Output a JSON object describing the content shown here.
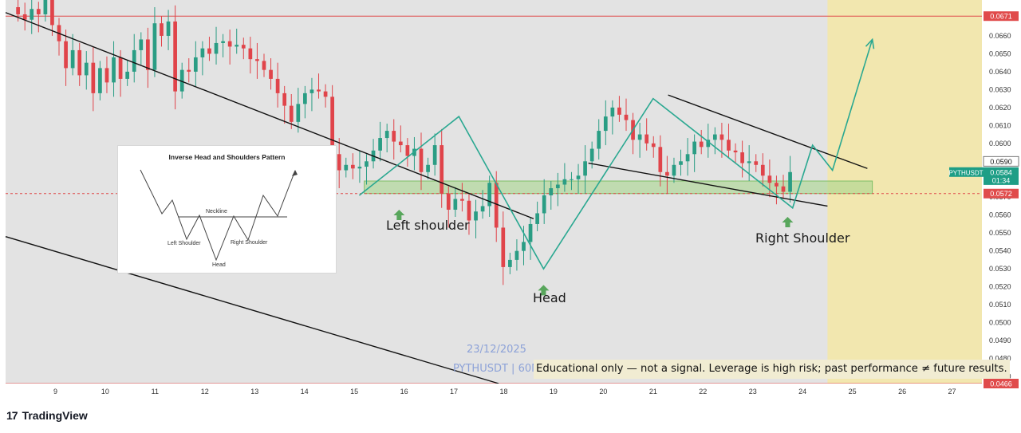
{
  "brand": {
    "logo": "17",
    "name": "TradingView"
  },
  "chart_data": {
    "type": "candlestick",
    "symbol": "PYTHUSDT",
    "watermark_date": "23/12/2025",
    "watermark_symbol": "PYTHUSDT | 60M",
    "x_ticks": [
      "9",
      "10",
      "11",
      "12",
      "13",
      "14",
      "15",
      "16",
      "17",
      "18",
      "19",
      "20",
      "21",
      "22",
      "23",
      "24",
      "25",
      "26",
      "27"
    ],
    "y_ticks": [
      0.047,
      0.048,
      0.049,
      0.05,
      0.051,
      0.052,
      0.053,
      0.054,
      0.055,
      0.056,
      0.057,
      0.058,
      0.059,
      0.06,
      0.061,
      0.062,
      0.063,
      0.064,
      0.065,
      0.066
    ],
    "y_tick_labels": [
      "0.0470",
      "0.0480",
      "0.0490",
      "0.0500",
      "0.0510",
      "0.0520",
      "0.0530",
      "0.0540",
      "0.0550",
      "0.0560",
      "0.0570",
      "0.0580",
      "0.0590",
      "0.0600",
      "0.0610",
      "0.0620",
      "0.0630",
      "0.0640",
      "0.0650",
      "0.0660"
    ],
    "ylim": [
      0.0466,
      0.068
    ],
    "xlim": [
      8.0,
      27.6
    ],
    "price_tags": [
      {
        "label": "0.0671",
        "value": 0.0671,
        "color": "#e04b4b"
      },
      {
        "label": "0.0590",
        "value": 0.059,
        "color": "#ffffff"
      },
      {
        "label": "0.0584",
        "value": 0.0584,
        "color": "#1e9e86"
      },
      {
        "label": "01:34",
        "value": 0.05795,
        "color": "#1e9e86"
      },
      {
        "label": "0.0572",
        "value": 0.0572,
        "color": "#e04b4b"
      },
      {
        "label": "0.0466",
        "value": 0.0466,
        "color": "#e04b4b"
      }
    ],
    "current_price_label": "PYTHUSDT",
    "horizontal_lines": [
      {
        "value": 0.0671,
        "color": "#e04b4b",
        "style": "solid"
      },
      {
        "value": 0.0466,
        "color": "#e04b4b",
        "style": "solid"
      },
      {
        "value": 0.0572,
        "color": "#e04b4b",
        "style": "dashed"
      }
    ],
    "support_zone": {
      "x_from": 15.2,
      "x_to": 25.4,
      "y_low": 0.0572,
      "y_high": 0.0579,
      "color": "#a8d68e"
    },
    "forecast_zone": {
      "x_from": 24.5,
      "x_to": 27.6,
      "color": "#f4e7a6"
    },
    "trend_lines": [
      {
        "x1": 8.0,
        "y1": 0.0673,
        "x2": 18.6,
        "y2": 0.0558
      },
      {
        "x1": 8.0,
        "y1": 0.0548,
        "x2": 17.9,
        "y2": 0.0466
      },
      {
        "x1": 21.3,
        "y1": 0.0627,
        "x2": 25.3,
        "y2": 0.0586
      },
      {
        "x1": 19.7,
        "y1": 0.0589,
        "x2": 24.5,
        "y2": 0.0565
      }
    ],
    "pattern_path": [
      {
        "x": 15.1,
        "y": 0.0571
      },
      {
        "x": 17.1,
        "y": 0.0615
      },
      {
        "x": 18.8,
        "y": 0.053
      },
      {
        "x": 21.0,
        "y": 0.0625
      },
      {
        "x": 23.8,
        "y": 0.0564
      },
      {
        "x": 24.2,
        "y": 0.0599
      },
      {
        "x": 24.6,
        "y": 0.0585
      },
      {
        "x": 25.4,
        "y": 0.0658
      }
    ],
    "candles_close": [
      0.0672,
      0.0669,
      0.0675,
      0.0672,
      0.068,
      0.0666,
      0.0657,
      0.0642,
      0.0652,
      0.0638,
      0.0645,
      0.0628,
      0.0642,
      0.0634,
      0.0648,
      0.0636,
      0.064,
      0.0652,
      0.0658,
      0.0641,
      0.0667,
      0.066,
      0.0668,
      0.0629,
      0.0641,
      0.064,
      0.0648,
      0.0653,
      0.065,
      0.0656,
      0.0657,
      0.0654,
      0.0655,
      0.0653,
      0.0647,
      0.0646,
      0.0641,
      0.0636,
      0.0628,
      0.0621,
      0.0612,
      0.0622,
      0.0628,
      0.063,
      0.0629,
      0.0626,
      0.0594,
      0.0585,
      0.0588,
      0.0586,
      0.0587,
      0.059,
      0.0596,
      0.0603,
      0.0607,
      0.0601,
      0.0599,
      0.0593,
      0.0597,
      0.0584,
      0.0588,
      0.0599,
      0.0572,
      0.0563,
      0.0569,
      0.0568,
      0.0557,
      0.0562,
      0.0565,
      0.0578,
      0.0553,
      0.0531,
      0.0535,
      0.054,
      0.0545,
      0.0555,
      0.0561,
      0.0571,
      0.0575,
      0.0577,
      0.058,
      0.058,
      0.0582,
      0.059,
      0.0597,
      0.0607,
      0.0615,
      0.062,
      0.0616,
      0.0613,
      0.0602,
      0.0605,
      0.06,
      0.0598,
      0.0584,
      0.0582,
      0.0588,
      0.059,
      0.0594,
      0.0601,
      0.0598,
      0.0602,
      0.0605,
      0.0602,
      0.0596,
      0.0595,
      0.0589,
      0.059,
      0.0588,
      0.0582,
      0.0578,
      0.0576,
      0.0573,
      0.0584
    ]
  },
  "inset": {
    "title": "Inverse Head and Shoulders Pattern",
    "neckline": "Neckline",
    "left_shoulder": "Left Shoulder",
    "right_shoulder": "Right Shoulder",
    "head": "Head"
  },
  "annotations": {
    "left_shoulder": "Left shoulder",
    "head": "Head",
    "right_shoulder": "Right Shoulder",
    "disclaimer": "Educational only — not a signal. Leverage is high risk; past performance ≠ future results."
  },
  "colors": {
    "plot_bg": "#e3e3e3",
    "up": "#2a9d84",
    "down": "#e0444a",
    "pattern": "#2aa891",
    "arrow": "#58a65c"
  }
}
